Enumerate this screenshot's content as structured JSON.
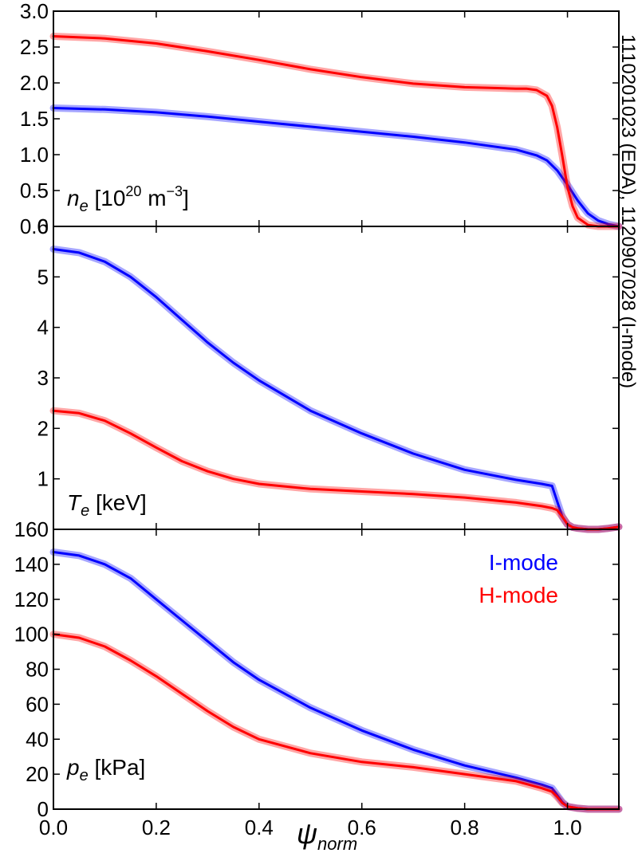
{
  "figure": {
    "side_label": "1110201023 (EDA), 1120907028 (I-mode)"
  },
  "legend": {
    "placement": "top-right of bottom panel",
    "entries": [
      {
        "label": "I-mode",
        "color": "#0000ff"
      },
      {
        "label": "H-mode",
        "color": "#ff0000"
      }
    ]
  },
  "chart_data": [
    {
      "type": "line",
      "panel": "ne",
      "ylabel": {
        "sym": "n",
        "sub": "e",
        "unit_pre": " [10",
        "unit_sup": "20",
        "unit_mid": " m",
        "unit_sup2": "−3",
        "unit_post": "]"
      },
      "ylim": [
        0,
        3.0
      ],
      "yticks": [
        0.5,
        1.0,
        1.5,
        2.0,
        2.5,
        3.0
      ],
      "ytick_labels": [
        "0.5",
        "1.0",
        "1.5",
        "2.0",
        "2.5",
        "3.0"
      ],
      "bottom_label": "0.0",
      "xlim": [
        0,
        1.1
      ],
      "series": [
        {
          "name": "I-mode",
          "color": "#0000ff",
          "x": [
            0,
            0.1,
            0.2,
            0.3,
            0.4,
            0.5,
            0.6,
            0.7,
            0.8,
            0.85,
            0.9,
            0.94,
            0.96,
            0.98,
            1.0,
            1.02,
            1.04,
            1.06,
            1.08,
            1.1
          ],
          "y": [
            1.65,
            1.63,
            1.59,
            1.53,
            1.46,
            1.39,
            1.32,
            1.25,
            1.17,
            1.12,
            1.07,
            0.99,
            0.92,
            0.78,
            0.58,
            0.36,
            0.18,
            0.08,
            0.03,
            0.0
          ]
        },
        {
          "name": "H-mode",
          "color": "#ff0000",
          "x": [
            0,
            0.1,
            0.2,
            0.3,
            0.4,
            0.5,
            0.6,
            0.7,
            0.8,
            0.85,
            0.9,
            0.92,
            0.94,
            0.96,
            0.97,
            0.98,
            0.99,
            1.0,
            1.01,
            1.02,
            1.04,
            1.06,
            1.08,
            1.1
          ],
          "y": [
            2.65,
            2.62,
            2.55,
            2.44,
            2.32,
            2.19,
            2.08,
            1.99,
            1.94,
            1.93,
            1.92,
            1.92,
            1.9,
            1.82,
            1.68,
            1.38,
            0.98,
            0.55,
            0.28,
            0.12,
            0.02,
            0.0,
            0.0,
            0.0
          ]
        }
      ]
    },
    {
      "type": "line",
      "panel": "Te",
      "ylabel": {
        "sym": "T",
        "sub": "e",
        "unit_pre": " [keV]",
        "unit_sup": "",
        "unit_mid": "",
        "unit_sup2": "",
        "unit_post": ""
      },
      "ylim": [
        0,
        6
      ],
      "yticks": [
        1,
        2,
        3,
        4,
        5,
        6
      ],
      "ytick_labels": [
        "1",
        "2",
        "3",
        "4",
        "5",
        "6"
      ],
      "bottom_label": "160",
      "xlim": [
        0,
        1.1
      ],
      "series": [
        {
          "name": "I-mode",
          "color": "#0000ff",
          "x": [
            0,
            0.05,
            0.1,
            0.15,
            0.2,
            0.25,
            0.3,
            0.35,
            0.4,
            0.5,
            0.6,
            0.7,
            0.8,
            0.9,
            0.95,
            0.97,
            0.98,
            0.99,
            1.0,
            1.01,
            1.02,
            1.04,
            1.06,
            1.08,
            1.1
          ],
          "y": [
            5.55,
            5.48,
            5.3,
            5.0,
            4.6,
            4.15,
            3.7,
            3.3,
            2.95,
            2.35,
            1.9,
            1.5,
            1.18,
            0.98,
            0.9,
            0.86,
            0.55,
            0.25,
            0.1,
            0.04,
            0.02,
            0.0,
            0.0,
            0.02,
            0.05
          ]
        },
        {
          "name": "H-mode",
          "color": "#ff0000",
          "x": [
            0,
            0.05,
            0.1,
            0.15,
            0.2,
            0.25,
            0.3,
            0.35,
            0.4,
            0.5,
            0.6,
            0.7,
            0.8,
            0.9,
            0.95,
            0.97,
            0.98,
            0.99,
            1.0,
            1.01,
            1.02,
            1.04,
            1.06,
            1.08,
            1.1
          ],
          "y": [
            2.35,
            2.3,
            2.15,
            1.9,
            1.62,
            1.35,
            1.15,
            1.0,
            0.9,
            0.8,
            0.75,
            0.7,
            0.63,
            0.53,
            0.46,
            0.42,
            0.38,
            0.25,
            0.1,
            0.04,
            0.02,
            0.0,
            0.0,
            0.02,
            0.05
          ]
        }
      ]
    },
    {
      "type": "line",
      "panel": "pe",
      "ylabel": {
        "sym": "p",
        "sub": "e",
        "unit_pre": " [kPa]",
        "unit_sup": "",
        "unit_mid": "",
        "unit_sup2": "",
        "unit_post": ""
      },
      "ylim": [
        0,
        160
      ],
      "yticks": [
        0,
        20,
        40,
        60,
        80,
        100,
        120,
        140
      ],
      "ytick_labels": [
        "0",
        "20",
        "40",
        "60",
        "80",
        "100",
        "120",
        "140"
      ],
      "bottom_label": "",
      "xlim": [
        0,
        1.1
      ],
      "xticks": [
        0.0,
        0.2,
        0.4,
        0.6,
        0.8,
        1.0
      ],
      "xtick_labels": [
        "0.0",
        "0.2",
        "0.4",
        "0.6",
        "0.8",
        "1.0"
      ],
      "xlabel": {
        "sym": "ψ",
        "sub": "norm"
      },
      "series": [
        {
          "name": "I-mode",
          "color": "#0000ff",
          "x": [
            0,
            0.05,
            0.1,
            0.15,
            0.2,
            0.25,
            0.3,
            0.35,
            0.4,
            0.5,
            0.6,
            0.7,
            0.8,
            0.9,
            0.95,
            0.97,
            0.98,
            0.99,
            1.0,
            1.02,
            1.04,
            1.06,
            1.08,
            1.1
          ],
          "y": [
            147,
            145,
            140,
            132,
            120,
            108,
            96,
            84,
            74,
            58,
            45,
            34,
            25,
            18,
            14,
            12,
            8,
            4,
            1.5,
            0.5,
            0,
            0,
            0,
            0
          ]
        },
        {
          "name": "H-mode",
          "color": "#ff0000",
          "x": [
            0,
            0.05,
            0.1,
            0.15,
            0.2,
            0.25,
            0.3,
            0.35,
            0.4,
            0.5,
            0.6,
            0.7,
            0.8,
            0.9,
            0.95,
            0.97,
            0.98,
            0.99,
            1.0,
            1.02,
            1.04,
            1.06,
            1.08,
            1.1
          ],
          "y": [
            100,
            98,
            93,
            85,
            76,
            66,
            56,
            47,
            40,
            32,
            27,
            24,
            20,
            16,
            12,
            10,
            7,
            3.5,
            1.5,
            0.5,
            0,
            0,
            0,
            0
          ]
        }
      ]
    }
  ]
}
